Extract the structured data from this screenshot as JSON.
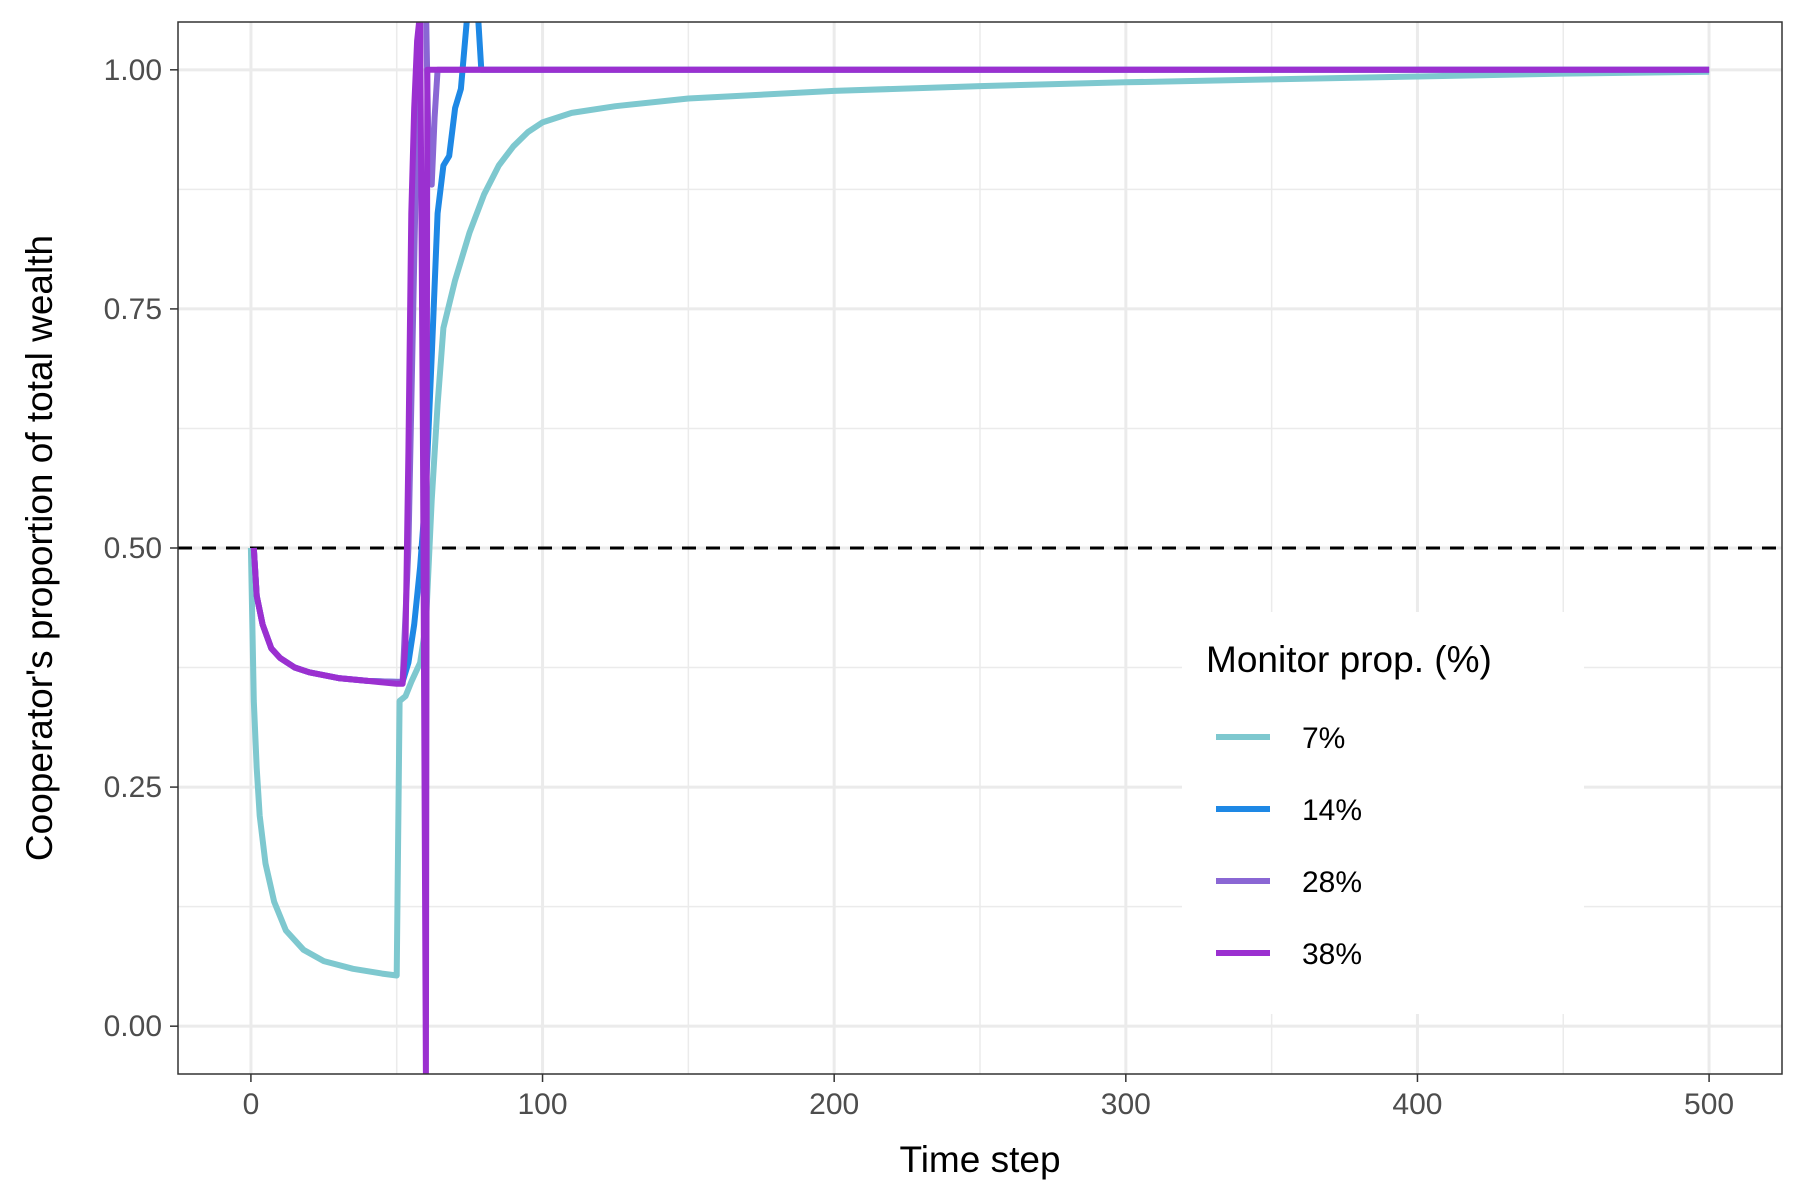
{
  "chart_data": {
    "type": "line",
    "title": "",
    "xlabel": "Time step",
    "ylabel": "Cooperator's proportion of total wealth",
    "xlim": [
      -25,
      525
    ],
    "ylim": [
      -0.05,
      1.05
    ],
    "x_ticks": [
      0,
      100,
      200,
      300,
      400,
      500
    ],
    "x_tick_labels": [
      "0",
      "100",
      "200",
      "300",
      "400",
      "500"
    ],
    "y_ticks": [
      0,
      0.25,
      0.5,
      0.75,
      1.0
    ],
    "y_tick_labels": [
      "0.00",
      "0.25",
      "0.50",
      "0.75",
      "1.00"
    ],
    "grid": true,
    "reference_line": {
      "y": 0.5,
      "style": "dashed",
      "color": "#000000"
    },
    "legend": {
      "title": "Monitor prop. (%)",
      "position": "right-inside"
    },
    "series": [
      {
        "name": "7%",
        "color": "#7ec8cf",
        "points": [
          [
            0,
            0.5
          ],
          [
            1,
            0.34
          ],
          [
            2,
            0.27
          ],
          [
            3,
            0.22
          ],
          [
            5,
            0.17
          ],
          [
            8,
            0.13
          ],
          [
            12,
            0.1
          ],
          [
            18,
            0.08
          ],
          [
            25,
            0.068
          ],
          [
            35,
            0.06
          ],
          [
            45,
            0.055
          ],
          [
            50,
            0.053
          ],
          [
            51,
            0.34
          ],
          [
            53,
            0.345
          ],
          [
            55,
            0.36
          ],
          [
            58,
            0.38
          ],
          [
            60,
            0.42
          ],
          [
            62,
            0.55
          ],
          [
            64,
            0.65
          ],
          [
            66,
            0.73
          ],
          [
            70,
            0.78
          ],
          [
            75,
            0.83
          ],
          [
            80,
            0.87
          ],
          [
            85,
            0.9
          ],
          [
            90,
            0.92
          ],
          [
            95,
            0.935
          ],
          [
            100,
            0.945
          ],
          [
            110,
            0.955
          ],
          [
            125,
            0.962
          ],
          [
            150,
            0.97
          ],
          [
            200,
            0.978
          ],
          [
            250,
            0.983
          ],
          [
            300,
            0.987
          ],
          [
            350,
            0.99
          ],
          [
            400,
            0.993
          ],
          [
            450,
            0.996
          ],
          [
            500,
            0.998
          ]
        ]
      },
      {
        "name": "14%",
        "color": "#1e88e5",
        "points": [
          [
            1,
            0.5
          ],
          [
            2,
            0.45
          ],
          [
            4,
            0.42
          ],
          [
            7,
            0.395
          ],
          [
            10,
            0.385
          ],
          [
            15,
            0.375
          ],
          [
            20,
            0.37
          ],
          [
            30,
            0.364
          ],
          [
            40,
            0.361
          ],
          [
            50,
            0.36
          ],
          [
            52,
            0.36
          ],
          [
            54,
            0.38
          ],
          [
            56,
            0.42
          ],
          [
            58,
            0.48
          ],
          [
            60,
            0.56
          ],
          [
            62,
            0.7
          ],
          [
            64,
            0.85
          ],
          [
            66,
            0.9
          ],
          [
            68,
            0.91
          ],
          [
            70,
            0.96
          ],
          [
            72,
            0.98
          ],
          [
            74,
            1.05
          ],
          [
            76,
            1.06
          ],
          [
            78,
            1.05
          ],
          [
            79,
            1.0
          ],
          [
            100,
            1.0
          ],
          [
            200,
            1.0
          ],
          [
            300,
            1.0
          ],
          [
            400,
            1.0
          ],
          [
            500,
            1.0
          ]
        ]
      },
      {
        "name": "28%",
        "color": "#8a67d4",
        "points": [
          [
            1,
            0.5
          ],
          [
            2,
            0.45
          ],
          [
            4,
            0.42
          ],
          [
            7,
            0.395
          ],
          [
            10,
            0.385
          ],
          [
            15,
            0.375
          ],
          [
            20,
            0.37
          ],
          [
            30,
            0.364
          ],
          [
            40,
            0.361
          ],
          [
            50,
            0.36
          ],
          [
            52,
            0.36
          ],
          [
            54,
            0.5
          ],
          [
            56,
            0.8
          ],
          [
            57,
            0.95
          ],
          [
            58,
            1.06
          ],
          [
            59,
            1.08
          ],
          [
            60,
            1.07
          ],
          [
            61,
            0.9
          ],
          [
            62,
            0.88
          ],
          [
            63,
            0.95
          ],
          [
            64,
            1.0
          ],
          [
            100,
            1.0
          ],
          [
            200,
            1.0
          ],
          [
            300,
            1.0
          ],
          [
            400,
            1.0
          ],
          [
            500,
            1.0
          ]
        ]
      },
      {
        "name": "38%",
        "color": "#9b30d0",
        "points": [
          [
            1,
            0.5
          ],
          [
            2,
            0.45
          ],
          [
            4,
            0.42
          ],
          [
            7,
            0.395
          ],
          [
            10,
            0.385
          ],
          [
            15,
            0.375
          ],
          [
            20,
            0.37
          ],
          [
            30,
            0.364
          ],
          [
            40,
            0.361
          ],
          [
            50,
            0.358
          ],
          [
            52,
            0.358
          ],
          [
            53,
            0.4
          ],
          [
            54,
            0.6
          ],
          [
            55,
            0.85
          ],
          [
            56,
            0.96
          ],
          [
            57,
            1.03
          ],
          [
            58,
            1.06
          ],
          [
            59,
            0.6
          ],
          [
            60,
            -0.05
          ],
          [
            60.5,
            1.0
          ],
          [
            61,
            1.0
          ],
          [
            100,
            1.0
          ],
          [
            200,
            1.0
          ],
          [
            300,
            1.0
          ],
          [
            400,
            1.0
          ],
          [
            500,
            1.0
          ]
        ]
      }
    ]
  }
}
